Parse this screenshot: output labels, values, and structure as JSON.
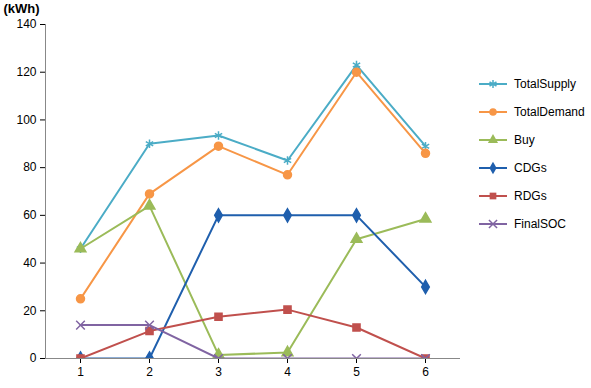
{
  "chart_data": {
    "type": "line",
    "y_label": "(kWh)",
    "categories": [
      "1",
      "2",
      "3",
      "4",
      "5",
      "6"
    ],
    "ylim": [
      0,
      140
    ],
    "yticks": [
      0,
      20,
      40,
      60,
      80,
      100,
      120,
      140
    ],
    "grid": false,
    "legend": "right",
    "series": [
      {
        "name": "TotalSupply",
        "color": "#4bacc6",
        "marker": "asterisk",
        "values": [
          46,
          90,
          93.5,
          83,
          123,
          89
        ]
      },
      {
        "name": "TotalDemand",
        "color": "#f79646",
        "marker": "circle",
        "values": [
          25,
          69,
          89,
          77,
          120,
          86
        ]
      },
      {
        "name": "Buy",
        "color": "#9bbb59",
        "marker": "triangle",
        "values": [
          46,
          64,
          1.5,
          2.5,
          50,
          58.5
        ]
      },
      {
        "name": "CDGs",
        "color": "#1f5fad",
        "marker": "diamond",
        "values": [
          0,
          0,
          60,
          60,
          60,
          30
        ]
      },
      {
        "name": "RDGs",
        "color": "#c0504d",
        "marker": "square",
        "values": [
          0,
          11.5,
          17.5,
          20.5,
          13,
          0
        ]
      },
      {
        "name": "FinalSOC",
        "color": "#8064a2",
        "marker": "x",
        "values": [
          14,
          14,
          0,
          0,
          0,
          0
        ]
      }
    ]
  }
}
